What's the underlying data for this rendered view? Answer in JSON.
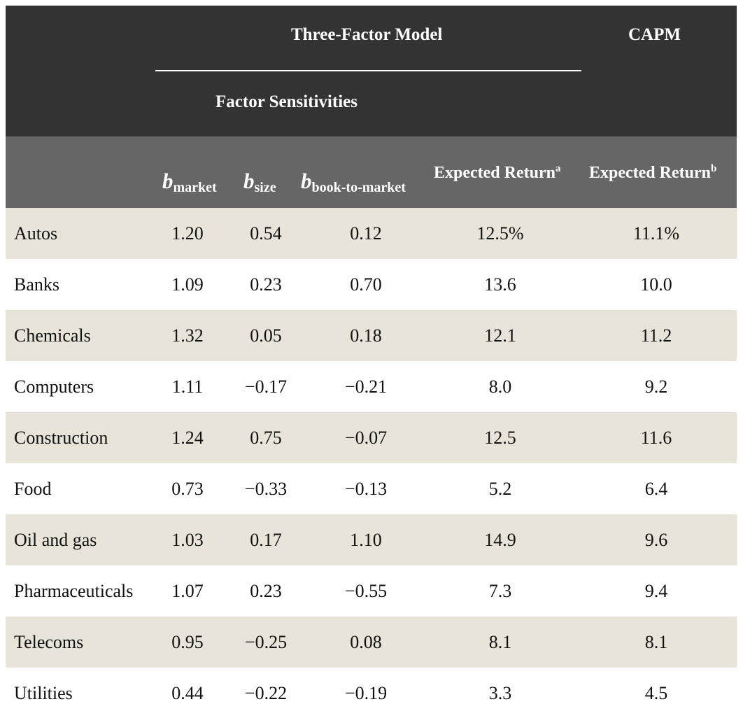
{
  "header": {
    "group_title": "Three-Factor Model",
    "capm_title": "CAPM",
    "subgroup_title": "Factor Sensitivities",
    "columns": {
      "b_symbol": "b",
      "market_sub": "market",
      "size_sub": "size",
      "btm_sub": "book-to-market",
      "expected_return_label": "Expected Return",
      "footnote_a": "a",
      "footnote_b": "b"
    }
  },
  "rows": [
    {
      "industry": "Autos",
      "b_market": "1.20",
      "b_size": "0.54",
      "b_btm": "0.12",
      "expected_three_factor": "12.5%",
      "expected_capm": "11.1%"
    },
    {
      "industry": "Banks",
      "b_market": "1.09",
      "b_size": "0.23",
      "b_btm": "0.70",
      "expected_three_factor": "13.6",
      "expected_capm": "10.0"
    },
    {
      "industry": "Chemicals",
      "b_market": "1.32",
      "b_size": "0.05",
      "b_btm": "0.18",
      "expected_three_factor": "12.1",
      "expected_capm": "11.2"
    },
    {
      "industry": "Computers",
      "b_market": "1.11",
      "b_size": "−0.17",
      "b_btm": "−0.21",
      "expected_three_factor": "8.0",
      "expected_capm": "9.2"
    },
    {
      "industry": "Construction",
      "b_market": "1.24",
      "b_size": "0.75",
      "b_btm": "−0.07",
      "expected_three_factor": "12.5",
      "expected_capm": "11.6"
    },
    {
      "industry": "Food",
      "b_market": "0.73",
      "b_size": "−0.33",
      "b_btm": "−0.13",
      "expected_three_factor": "5.2",
      "expected_capm": "6.4"
    },
    {
      "industry": "Oil and gas",
      "b_market": "1.03",
      "b_size": "0.17",
      "b_btm": "1.10",
      "expected_three_factor": "14.9",
      "expected_capm": "9.6"
    },
    {
      "industry": "Pharmaceuticals",
      "b_market": "1.07",
      "b_size": "0.23",
      "b_btm": "−0.55",
      "expected_three_factor": "7.3",
      "expected_capm": "9.4"
    },
    {
      "industry": "Telecoms",
      "b_market": "0.95",
      "b_size": "−0.25",
      "b_btm": "0.08",
      "expected_three_factor": "8.1",
      "expected_capm": "8.1"
    },
    {
      "industry": "Utilities",
      "b_market": "0.44",
      "b_size": "−0.22",
      "b_btm": "−0.19",
      "expected_three_factor": "3.3",
      "expected_capm": "4.5"
    }
  ],
  "colors": {
    "header_dark": "#333333",
    "header_mid": "#666666",
    "row_shaded": "#e8e4d9",
    "row_plain": "#ffffff"
  }
}
